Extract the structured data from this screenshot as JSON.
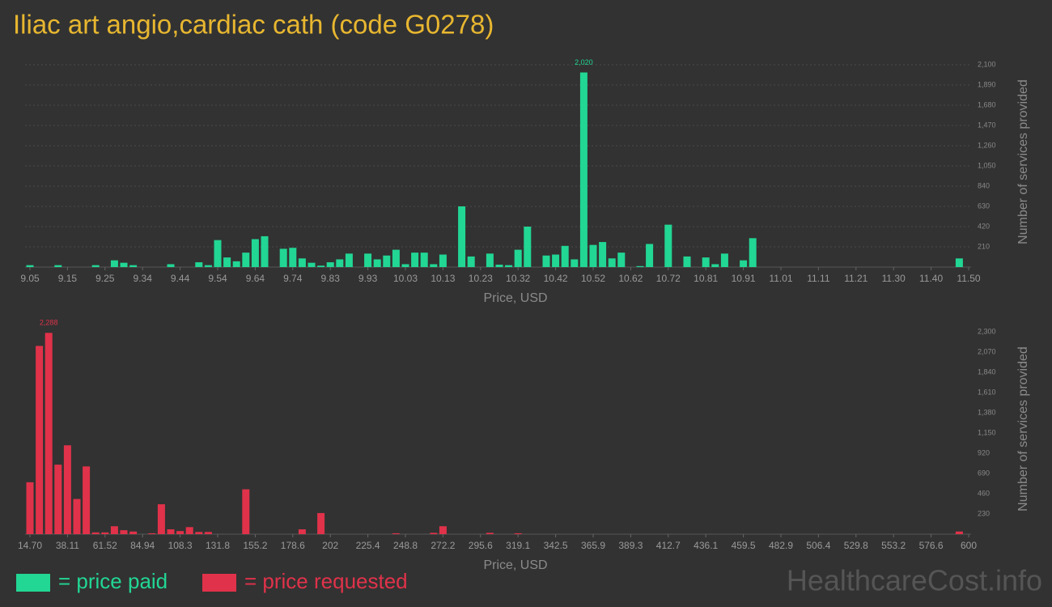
{
  "title": "Iliac art angio,cardiac cath (code G0278)",
  "watermark": "HealthcareCost.info",
  "chart_data": [
    {
      "type": "bar",
      "x_label": "Price, USD",
      "y_label": "Number of services provided",
      "grid": true,
      "categories": [
        "9.05",
        null,
        null,
        null,
        "9.15",
        null,
        null,
        null,
        "9.25",
        null,
        null,
        null,
        "9.34",
        null,
        null,
        null,
        "9.44",
        null,
        null,
        null,
        "9.54",
        null,
        null,
        null,
        "9.64",
        null,
        null,
        null,
        "9.74",
        null,
        null,
        null,
        "9.83",
        null,
        null,
        null,
        "9.93",
        null,
        null,
        null,
        "10.03",
        null,
        null,
        null,
        "10.13",
        null,
        null,
        null,
        "10.23",
        null,
        null,
        null,
        "10.32",
        null,
        null,
        null,
        "10.42",
        null,
        null,
        null,
        "10.52",
        null,
        null,
        null,
        "10.62",
        null,
        null,
        null,
        "10.72",
        null,
        null,
        null,
        "10.81",
        null,
        null,
        null,
        "10.91",
        null,
        null,
        null,
        "11.01",
        null,
        null,
        null,
        "11.11",
        null,
        null,
        null,
        "11.21",
        null,
        null,
        null,
        "11.30",
        null,
        null,
        null,
        "11.40",
        null,
        null,
        null,
        "11.50"
      ],
      "series": [
        {
          "name": "= price paid",
          "color": "#22d694",
          "values": [
            20,
            0,
            0,
            20,
            0,
            0,
            0,
            20,
            0,
            70,
            45,
            20,
            0,
            0,
            0,
            30,
            0,
            0,
            50,
            20,
            280,
            100,
            60,
            150,
            290,
            320,
            0,
            190,
            200,
            90,
            45,
            15,
            50,
            80,
            140,
            0,
            140,
            80,
            120,
            180,
            30,
            150,
            150,
            30,
            130,
            0,
            630,
            110,
            0,
            140,
            25,
            20,
            180,
            420,
            0,
            120,
            130,
            220,
            80,
            2020,
            230,
            260,
            90,
            150,
            0,
            10,
            240,
            0,
            440,
            0,
            110,
            0,
            100,
            30,
            140,
            0,
            70,
            300,
            0,
            0,
            0,
            0,
            0,
            0,
            0,
            0,
            0,
            0,
            0,
            0,
            0,
            0,
            0,
            0,
            0,
            0,
            0,
            0,
            0,
            90,
            0
          ],
          "value_labels": [
            null,
            null,
            null,
            null,
            null,
            null,
            null,
            null,
            null,
            null,
            null,
            null,
            null,
            null,
            null,
            null,
            null,
            null,
            null,
            null,
            null,
            null,
            null,
            null,
            null,
            null,
            null,
            null,
            null,
            null,
            null,
            null,
            null,
            null,
            null,
            null,
            null,
            null,
            null,
            null,
            null,
            null,
            null,
            null,
            null,
            null,
            null,
            null,
            null,
            null,
            null,
            null,
            null,
            null,
            null,
            null,
            null,
            null,
            null,
            "2,020",
            null,
            null,
            null,
            null,
            null,
            null,
            null,
            null,
            null,
            null,
            null,
            null,
            null,
            null,
            null,
            null,
            null,
            null,
            null,
            null,
            null,
            null,
            null,
            null,
            null,
            null,
            null,
            null,
            null,
            null,
            null,
            null,
            null,
            null,
            null,
            null,
            null,
            null,
            null,
            null,
            null
          ]
        }
      ],
      "ylim": [
        0,
        2100
      ],
      "yticks": [
        210,
        420,
        630,
        840,
        {
          "value": 1050,
          "label": "1,050"
        },
        {
          "value": 1260,
          "label": "1,260"
        },
        {
          "value": 1470,
          "label": "1,470"
        },
        {
          "value": 1680,
          "label": "1,680"
        },
        {
          "value": 1890,
          "label": "1,890"
        },
        {
          "value": 2100,
          "label": "2,100"
        }
      ]
    },
    {
      "type": "bar",
      "x_label": "Price, USD",
      "y_label": "Number of services provided",
      "grid": false,
      "categories": [
        "14.70",
        null,
        null,
        null,
        "38.11",
        null,
        null,
        null,
        "61.52",
        null,
        null,
        null,
        "84.94",
        null,
        null,
        null,
        "108.3",
        null,
        null,
        null,
        "131.8",
        null,
        null,
        null,
        "155.2",
        null,
        null,
        null,
        "178.6",
        null,
        null,
        null,
        "202",
        null,
        null,
        null,
        "225.4",
        null,
        null,
        null,
        "248.8",
        null,
        null,
        null,
        "272.2",
        null,
        null,
        null,
        "295.6",
        null,
        null,
        null,
        "319.1",
        null,
        null,
        null,
        "342.5",
        null,
        null,
        null,
        "365.9",
        null,
        null,
        null,
        "389.3",
        null,
        null,
        null,
        "412.7",
        null,
        null,
        null,
        "436.1",
        null,
        null,
        null,
        "459.5",
        null,
        null,
        null,
        "482.9",
        null,
        null,
        null,
        "506.4",
        null,
        null,
        null,
        "529.8",
        null,
        null,
        null,
        "553.2",
        null,
        null,
        null,
        "576.6",
        null,
        null,
        null,
        "600"
      ],
      "series": [
        {
          "name": "= price requested",
          "color": "#e0324a",
          "values": [
            590,
            2140,
            2288,
            790,
            1010,
            400,
            770,
            20,
            20,
            90,
            45,
            30,
            0,
            10,
            340,
            55,
            35,
            80,
            25,
            25,
            0,
            0,
            0,
            510,
            0,
            0,
            0,
            0,
            0,
            55,
            0,
            240,
            0,
            0,
            0,
            0,
            0,
            0,
            0,
            10,
            0,
            0,
            0,
            15,
            90,
            0,
            0,
            0,
            0,
            15,
            0,
            0,
            10,
            0,
            0,
            0,
            0,
            0,
            0,
            0,
            0,
            0,
            0,
            0,
            0,
            0,
            0,
            0,
            0,
            0,
            0,
            0,
            0,
            0,
            0,
            0,
            0,
            0,
            0,
            0,
            0,
            0,
            0,
            0,
            0,
            0,
            0,
            0,
            0,
            0,
            0,
            0,
            0,
            0,
            0,
            0,
            0,
            0,
            0,
            30,
            0
          ],
          "value_labels": [
            null,
            null,
            "2,288",
            null,
            null,
            null,
            null,
            null,
            null,
            null,
            null,
            null,
            null,
            null,
            null,
            null,
            null,
            null,
            null,
            null,
            null,
            null,
            null,
            null,
            null,
            null,
            null,
            null,
            null,
            null,
            null,
            null,
            null,
            null,
            null,
            null,
            null,
            null,
            null,
            null,
            null,
            null,
            null,
            null,
            null,
            null,
            null,
            null,
            null,
            null,
            null,
            null,
            null,
            null,
            null,
            null,
            null,
            null,
            null,
            null,
            null,
            null,
            null,
            null,
            null,
            null,
            null,
            null,
            null,
            null,
            null,
            null,
            null,
            null,
            null,
            null,
            null,
            null,
            null,
            null,
            null,
            null,
            null,
            null,
            null,
            null,
            null,
            null,
            null,
            null,
            null,
            null,
            null,
            null,
            null,
            null,
            null,
            null,
            null,
            null,
            null
          ]
        }
      ],
      "ylim": [
        0,
        2300
      ],
      "yticks": [
        230,
        460,
        690,
        920,
        {
          "value": 1150,
          "label": "1,150"
        },
        {
          "value": 1380,
          "label": "1,380"
        },
        {
          "value": 1610,
          "label": "1,610"
        },
        {
          "value": 1840,
          "label": "1,840"
        },
        {
          "value": 2070,
          "label": "2,070"
        },
        {
          "value": 2300,
          "label": "2,300"
        }
      ]
    }
  ]
}
